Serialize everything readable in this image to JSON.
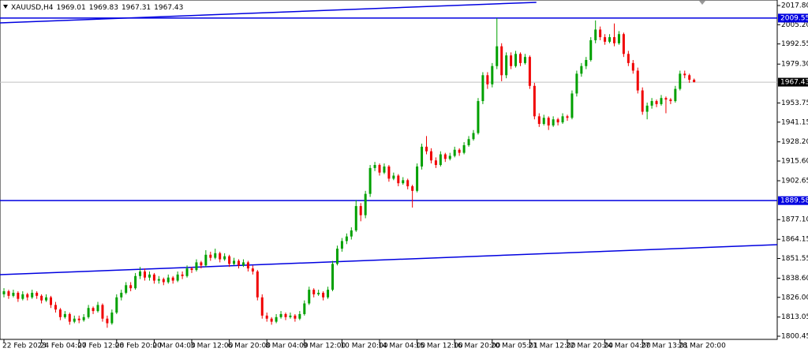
{
  "chart_data": {
    "type": "candlestick",
    "symbol": "XAUUSD,H4",
    "up_color": "#00a000",
    "down_color": "#f00000",
    "line_color": "#0000e0",
    "ylim": [
      1798.38,
      2021.43
    ],
    "yticks": [
      {
        "value": 2017.8,
        "label": "2017.80"
      },
      {
        "value": 2005.2,
        "label": "2005.20"
      },
      {
        "value": 1992.55,
        "label": "1992.55"
      },
      {
        "value": 1979.3,
        "label": "1979.30"
      },
      {
        "value": 1953.75,
        "label": "1953.75"
      },
      {
        "value": 1941.15,
        "label": "1941.15"
      },
      {
        "value": 1928.2,
        "label": "1928.20"
      },
      {
        "value": 1915.6,
        "label": "1915.60"
      },
      {
        "value": 1902.65,
        "label": "1902.65"
      },
      {
        "value": 1877.1,
        "label": "1877.10"
      },
      {
        "value": 1864.15,
        "label": "1864.15"
      },
      {
        "value": 1851.55,
        "label": "1851.55"
      },
      {
        "value": 1838.6,
        "label": "1838.60"
      },
      {
        "value": 1826,
        "label": "1826.00"
      },
      {
        "value": 1813.05,
        "label": "1813.05"
      },
      {
        "value": 1800.45,
        "label": "1800.45"
      }
    ],
    "xticks": [
      {
        "value": 0,
        "label": "22 Feb 2023"
      },
      {
        "value": 8,
        "label": "24 Feb 04:00"
      },
      {
        "value": 16,
        "label": "27 Feb 12:00"
      },
      {
        "value": 24,
        "label": "28 Feb 20:00"
      },
      {
        "value": 32,
        "label": "2 Mar 04:00"
      },
      {
        "value": 40,
        "label": "3 Mar 12:00"
      },
      {
        "value": 48,
        "label": "6 Mar 20:00"
      },
      {
        "value": 56,
        "label": "8 Mar 04:00"
      },
      {
        "value": 64,
        "label": "9 Mar 12:00"
      },
      {
        "value": 72,
        "label": "10 Mar 20:00"
      },
      {
        "value": 80,
        "label": "14 Mar 04:00"
      },
      {
        "value": 88,
        "label": "15 Mar 12:00"
      },
      {
        "value": 96,
        "label": "16 Mar 20:00"
      },
      {
        "value": 104,
        "label": "20 Mar 05:01"
      },
      {
        "value": 112,
        "label": "21 Mar 12:00"
      },
      {
        "value": 120,
        "label": "22 Mar 20:00"
      },
      {
        "value": 128,
        "label": "24 Mar 04:00"
      },
      {
        "value": 136,
        "label": "27 Mar 13:01"
      },
      {
        "value": 144,
        "label": "28 Mar 20:00"
      }
    ],
    "hlines": [
      2009.55,
      1889.58
    ],
    "trendlines": [
      {
        "x": [
          -0.84,
          113.4
        ],
        "y": [
          2006.4,
          2019.9
        ]
      },
      {
        "x": [
          -0.84,
          164.7
        ],
        "y": [
          1840.9,
          1860.6
        ]
      }
    ],
    "ohlc": [
      [
        1828,
        1832,
        1826,
        1830
      ],
      [
        1830,
        1831,
        1825,
        1827
      ],
      [
        1827,
        1831,
        1826,
        1829
      ],
      [
        1829,
        1830,
        1823,
        1825
      ],
      [
        1825,
        1830,
        1824,
        1828
      ],
      [
        1828,
        1829,
        1824,
        1826
      ],
      [
        1826,
        1831,
        1825,
        1829
      ],
      [
        1829,
        1830,
        1825,
        1827
      ],
      [
        1827,
        1828,
        1822,
        1824
      ],
      [
        1824,
        1828,
        1823,
        1826
      ],
      [
        1826,
        1827,
        1819,
        1821
      ],
      [
        1821,
        1823,
        1816,
        1818
      ],
      [
        1818,
        1819,
        1811,
        1813
      ],
      [
        1813,
        1817,
        1812,
        1815
      ],
      [
        1815,
        1816,
        1808,
        1810
      ],
      [
        1810,
        1814,
        1809,
        1812
      ],
      [
        1812,
        1814,
        1809,
        1811
      ],
      [
        1811,
        1815,
        1810,
        1813
      ],
      [
        1813,
        1821,
        1812,
        1819
      ],
      [
        1819,
        1820,
        1815,
        1817
      ],
      [
        1817,
        1823,
        1816,
        1821
      ],
      [
        1821,
        1822,
        1810,
        1812
      ],
      [
        1812,
        1814,
        1806,
        1809
      ],
      [
        1809,
        1818,
        1808,
        1816
      ],
      [
        1816,
        1828,
        1815,
        1826
      ],
      [
        1826,
        1831,
        1824,
        1829
      ],
      [
        1829,
        1836,
        1828,
        1834
      ],
      [
        1834,
        1836,
        1830,
        1832
      ],
      [
        1832,
        1842,
        1831,
        1840
      ],
      [
        1840,
        1846,
        1838,
        1843
      ],
      [
        1843,
        1845,
        1837,
        1839
      ],
      [
        1839,
        1843,
        1837,
        1841
      ],
      [
        1841,
        1842,
        1835,
        1837
      ],
      [
        1837,
        1840,
        1835,
        1838
      ],
      [
        1838,
        1839,
        1834,
        1836
      ],
      [
        1836,
        1841,
        1835,
        1839
      ],
      [
        1839,
        1840,
        1835,
        1837
      ],
      [
        1837,
        1843,
        1836,
        1841
      ],
      [
        1841,
        1843,
        1838,
        1840
      ],
      [
        1840,
        1847,
        1839,
        1845
      ],
      [
        1845,
        1846,
        1842,
        1844
      ],
      [
        1844,
        1851,
        1843,
        1849
      ],
      [
        1849,
        1850,
        1845,
        1847
      ],
      [
        1847,
        1857,
        1846,
        1854
      ],
      [
        1854,
        1856,
        1850,
        1852
      ],
      [
        1852,
        1858,
        1851,
        1855
      ],
      [
        1855,
        1856,
        1849,
        1851
      ],
      [
        1851,
        1855,
        1850,
        1853
      ],
      [
        1853,
        1854,
        1846,
        1848
      ],
      [
        1848,
        1852,
        1847,
        1850
      ],
      [
        1850,
        1851,
        1845,
        1847
      ],
      [
        1847,
        1851,
        1846,
        1849
      ],
      [
        1849,
        1850,
        1843,
        1845
      ],
      [
        1845,
        1847,
        1841,
        1843
      ],
      [
        1843,
        1844,
        1824,
        1826
      ],
      [
        1826,
        1828,
        1812,
        1814
      ],
      [
        1814,
        1816,
        1810,
        1812
      ],
      [
        1812,
        1813,
        1808,
        1810
      ],
      [
        1810,
        1815,
        1809,
        1813
      ],
      [
        1813,
        1817,
        1812,
        1815
      ],
      [
        1815,
        1816,
        1811,
        1813
      ],
      [
        1813,
        1816,
        1812,
        1814
      ],
      [
        1814,
        1815,
        1810,
        1812
      ],
      [
        1812,
        1817,
        1811,
        1815
      ],
      [
        1815,
        1824,
        1814,
        1822
      ],
      [
        1822,
        1833,
        1821,
        1831
      ],
      [
        1831,
        1832,
        1826,
        1828
      ],
      [
        1828,
        1831,
        1827,
        1829
      ],
      [
        1829,
        1830,
        1824,
        1826
      ],
      [
        1826,
        1833,
        1825,
        1831
      ],
      [
        1831,
        1850,
        1830,
        1848
      ],
      [
        1848,
        1860,
        1847,
        1858
      ],
      [
        1858,
        1865,
        1856,
        1863
      ],
      [
        1863,
        1868,
        1861,
        1866
      ],
      [
        1866,
        1872,
        1864,
        1870
      ],
      [
        1870,
        1890,
        1869,
        1886
      ],
      [
        1886,
        1888,
        1876,
        1880
      ],
      [
        1880,
        1896,
        1878,
        1894
      ],
      [
        1894,
        1913,
        1892,
        1911
      ],
      [
        1911,
        1915,
        1909,
        1913
      ],
      [
        1913,
        1914,
        1906,
        1908
      ],
      [
        1908,
        1914,
        1907,
        1912
      ],
      [
        1912,
        1913,
        1902,
        1904
      ],
      [
        1904,
        1908,
        1903,
        1906
      ],
      [
        1906,
        1907,
        1899,
        1901
      ],
      [
        1901,
        1905,
        1900,
        1903
      ],
      [
        1903,
        1904,
        1897,
        1899
      ],
      [
        1899,
        1900,
        1885,
        1896
      ],
      [
        1896,
        1914,
        1895,
        1912
      ],
      [
        1912,
        1927,
        1910,
        1925
      ],
      [
        1925,
        1932,
        1920,
        1922
      ],
      [
        1922,
        1924,
        1914,
        1916
      ],
      [
        1916,
        1918,
        1911,
        1913
      ],
      [
        1913,
        1922,
        1912,
        1920
      ],
      [
        1920,
        1921,
        1915,
        1917
      ],
      [
        1917,
        1921,
        1916,
        1919
      ],
      [
        1919,
        1925,
        1918,
        1923
      ],
      [
        1923,
        1924,
        1919,
        1921
      ],
      [
        1921,
        1928,
        1920,
        1926
      ],
      [
        1926,
        1932,
        1925,
        1930
      ],
      [
        1930,
        1936,
        1929,
        1934
      ],
      [
        1934,
        1957,
        1933,
        1955
      ],
      [
        1955,
        1974,
        1953,
        1972
      ],
      [
        1972,
        1974,
        1963,
        1966
      ],
      [
        1966,
        1980,
        1964,
        1978
      ],
      [
        1978,
        2009.5,
        1976,
        1991
      ],
      [
        1991,
        1993,
        1968,
        1972
      ],
      [
        1972,
        1987,
        1970,
        1985
      ],
      [
        1985,
        1987,
        1976,
        1978
      ],
      [
        1978,
        1988,
        1977,
        1986
      ],
      [
        1986,
        1987,
        1978,
        1980
      ],
      [
        1980,
        1986,
        1979,
        1984
      ],
      [
        1984,
        1985,
        1963,
        1965
      ],
      [
        1965,
        1967,
        1943,
        1945
      ],
      [
        1945,
        1947,
        1938,
        1940
      ],
      [
        1940,
        1946,
        1939,
        1944
      ],
      [
        1944,
        1945,
        1936,
        1939
      ],
      [
        1939,
        1945,
        1938,
        1943
      ],
      [
        1943,
        1944,
        1939,
        1941
      ],
      [
        1941,
        1947,
        1940,
        1945
      ],
      [
        1945,
        1946,
        1942,
        1944
      ],
      [
        1944,
        1962,
        1943,
        1960
      ],
      [
        1960,
        1975,
        1958,
        1973
      ],
      [
        1973,
        1980,
        1971,
        1978
      ],
      [
        1978,
        1984,
        1976,
        1982
      ],
      [
        1982,
        1997,
        1981,
        1995
      ],
      [
        1995,
        2008,
        1993,
        2002
      ],
      [
        2002,
        2004,
        1995,
        1997
      ],
      [
        1997,
        1999,
        1992,
        1994
      ],
      [
        1994,
        1999,
        1993,
        1997
      ],
      [
        1997,
        2006,
        1991,
        1993
      ],
      [
        1993,
        2001,
        1992,
        1999
      ],
      [
        1999,
        2000,
        1984,
        1986
      ],
      [
        1986,
        1988,
        1978,
        1980
      ],
      [
        1980,
        1982,
        1973,
        1975
      ],
      [
        1975,
        1977,
        1960,
        1962
      ],
      [
        1962,
        1964,
        1946,
        1948
      ],
      [
        1948,
        1954,
        1943,
        1952
      ],
      [
        1952,
        1957,
        1950,
        1955
      ],
      [
        1955,
        1956,
        1951,
        1953
      ],
      [
        1953,
        1959,
        1952,
        1957
      ],
      [
        1957,
        1958,
        1947,
        1956
      ],
      [
        1956,
        1957,
        1953,
        1955
      ],
      [
        1955,
        1965,
        1954,
        1963
      ],
      [
        1963,
        1975,
        1962,
        1973
      ],
      [
        1973,
        1975,
        1970,
        1972
      ],
      [
        1972,
        1973,
        1967,
        1969
      ],
      [
        1969.01,
        1969.83,
        1967.31,
        1967.43
      ]
    ]
  }
}
